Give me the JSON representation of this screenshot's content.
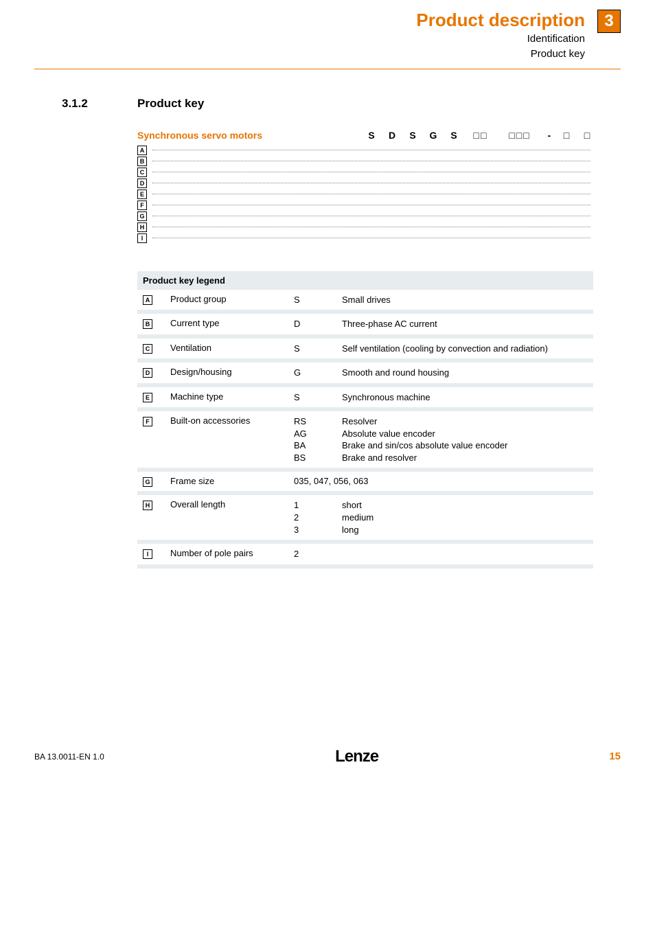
{
  "header": {
    "title": "Product description",
    "sub1": "Identification",
    "sub2": "Product key",
    "badge": "3"
  },
  "section": {
    "num": "3.1.2",
    "title": "Product key"
  },
  "tree": {
    "label": "Synchronous servo motors",
    "codes": [
      "S",
      "D",
      "S",
      "G",
      "S",
      "□□",
      "□□□",
      "-",
      "□",
      "□"
    ],
    "letters": [
      "A",
      "B",
      "C",
      "D",
      "E",
      "F",
      "G",
      "H",
      "I"
    ]
  },
  "legend": {
    "head": "Product key legend",
    "rows": [
      {
        "k": "A",
        "name": "Product group",
        "codes": [
          "S"
        ],
        "descs": [
          "Small drives"
        ]
      },
      {
        "k": "B",
        "name": "Current type",
        "codes": [
          "D"
        ],
        "descs": [
          "Three-phase AC current"
        ]
      },
      {
        "k": "C",
        "name": "Ventilation",
        "codes": [
          "S"
        ],
        "descs": [
          "Self ventilation (cooling by convection and radiation)"
        ]
      },
      {
        "k": "D",
        "name": "Design/housing",
        "codes": [
          "G"
        ],
        "descs": [
          "Smooth and round housing"
        ]
      },
      {
        "k": "E",
        "name": "Machine type",
        "codes": [
          "S"
        ],
        "descs": [
          "Synchronous machine"
        ]
      },
      {
        "k": "F",
        "name": "Built-on accessories",
        "codes": [
          "RS",
          "AG",
          "BA",
          "BS"
        ],
        "descs": [
          "Resolver",
          "Absolute value encoder",
          "Brake and sin/cos absolute value encoder",
          "Brake and resolver"
        ]
      },
      {
        "k": "G",
        "name": "Frame size",
        "codes": [
          ""
        ],
        "descs": [
          "035, 047, 056,  063"
        ],
        "merge": true
      },
      {
        "k": "H",
        "name": "Overall length",
        "codes": [
          "1",
          "2",
          "3"
        ],
        "descs": [
          "short",
          "medium",
          "long"
        ]
      },
      {
        "k": "I",
        "name": "Number of pole pairs",
        "codes": [
          "2"
        ],
        "descs": [
          ""
        ]
      }
    ]
  },
  "footer": {
    "left": "BA 13.0011-EN    1.0",
    "logo": "Lenze",
    "page": "15"
  }
}
